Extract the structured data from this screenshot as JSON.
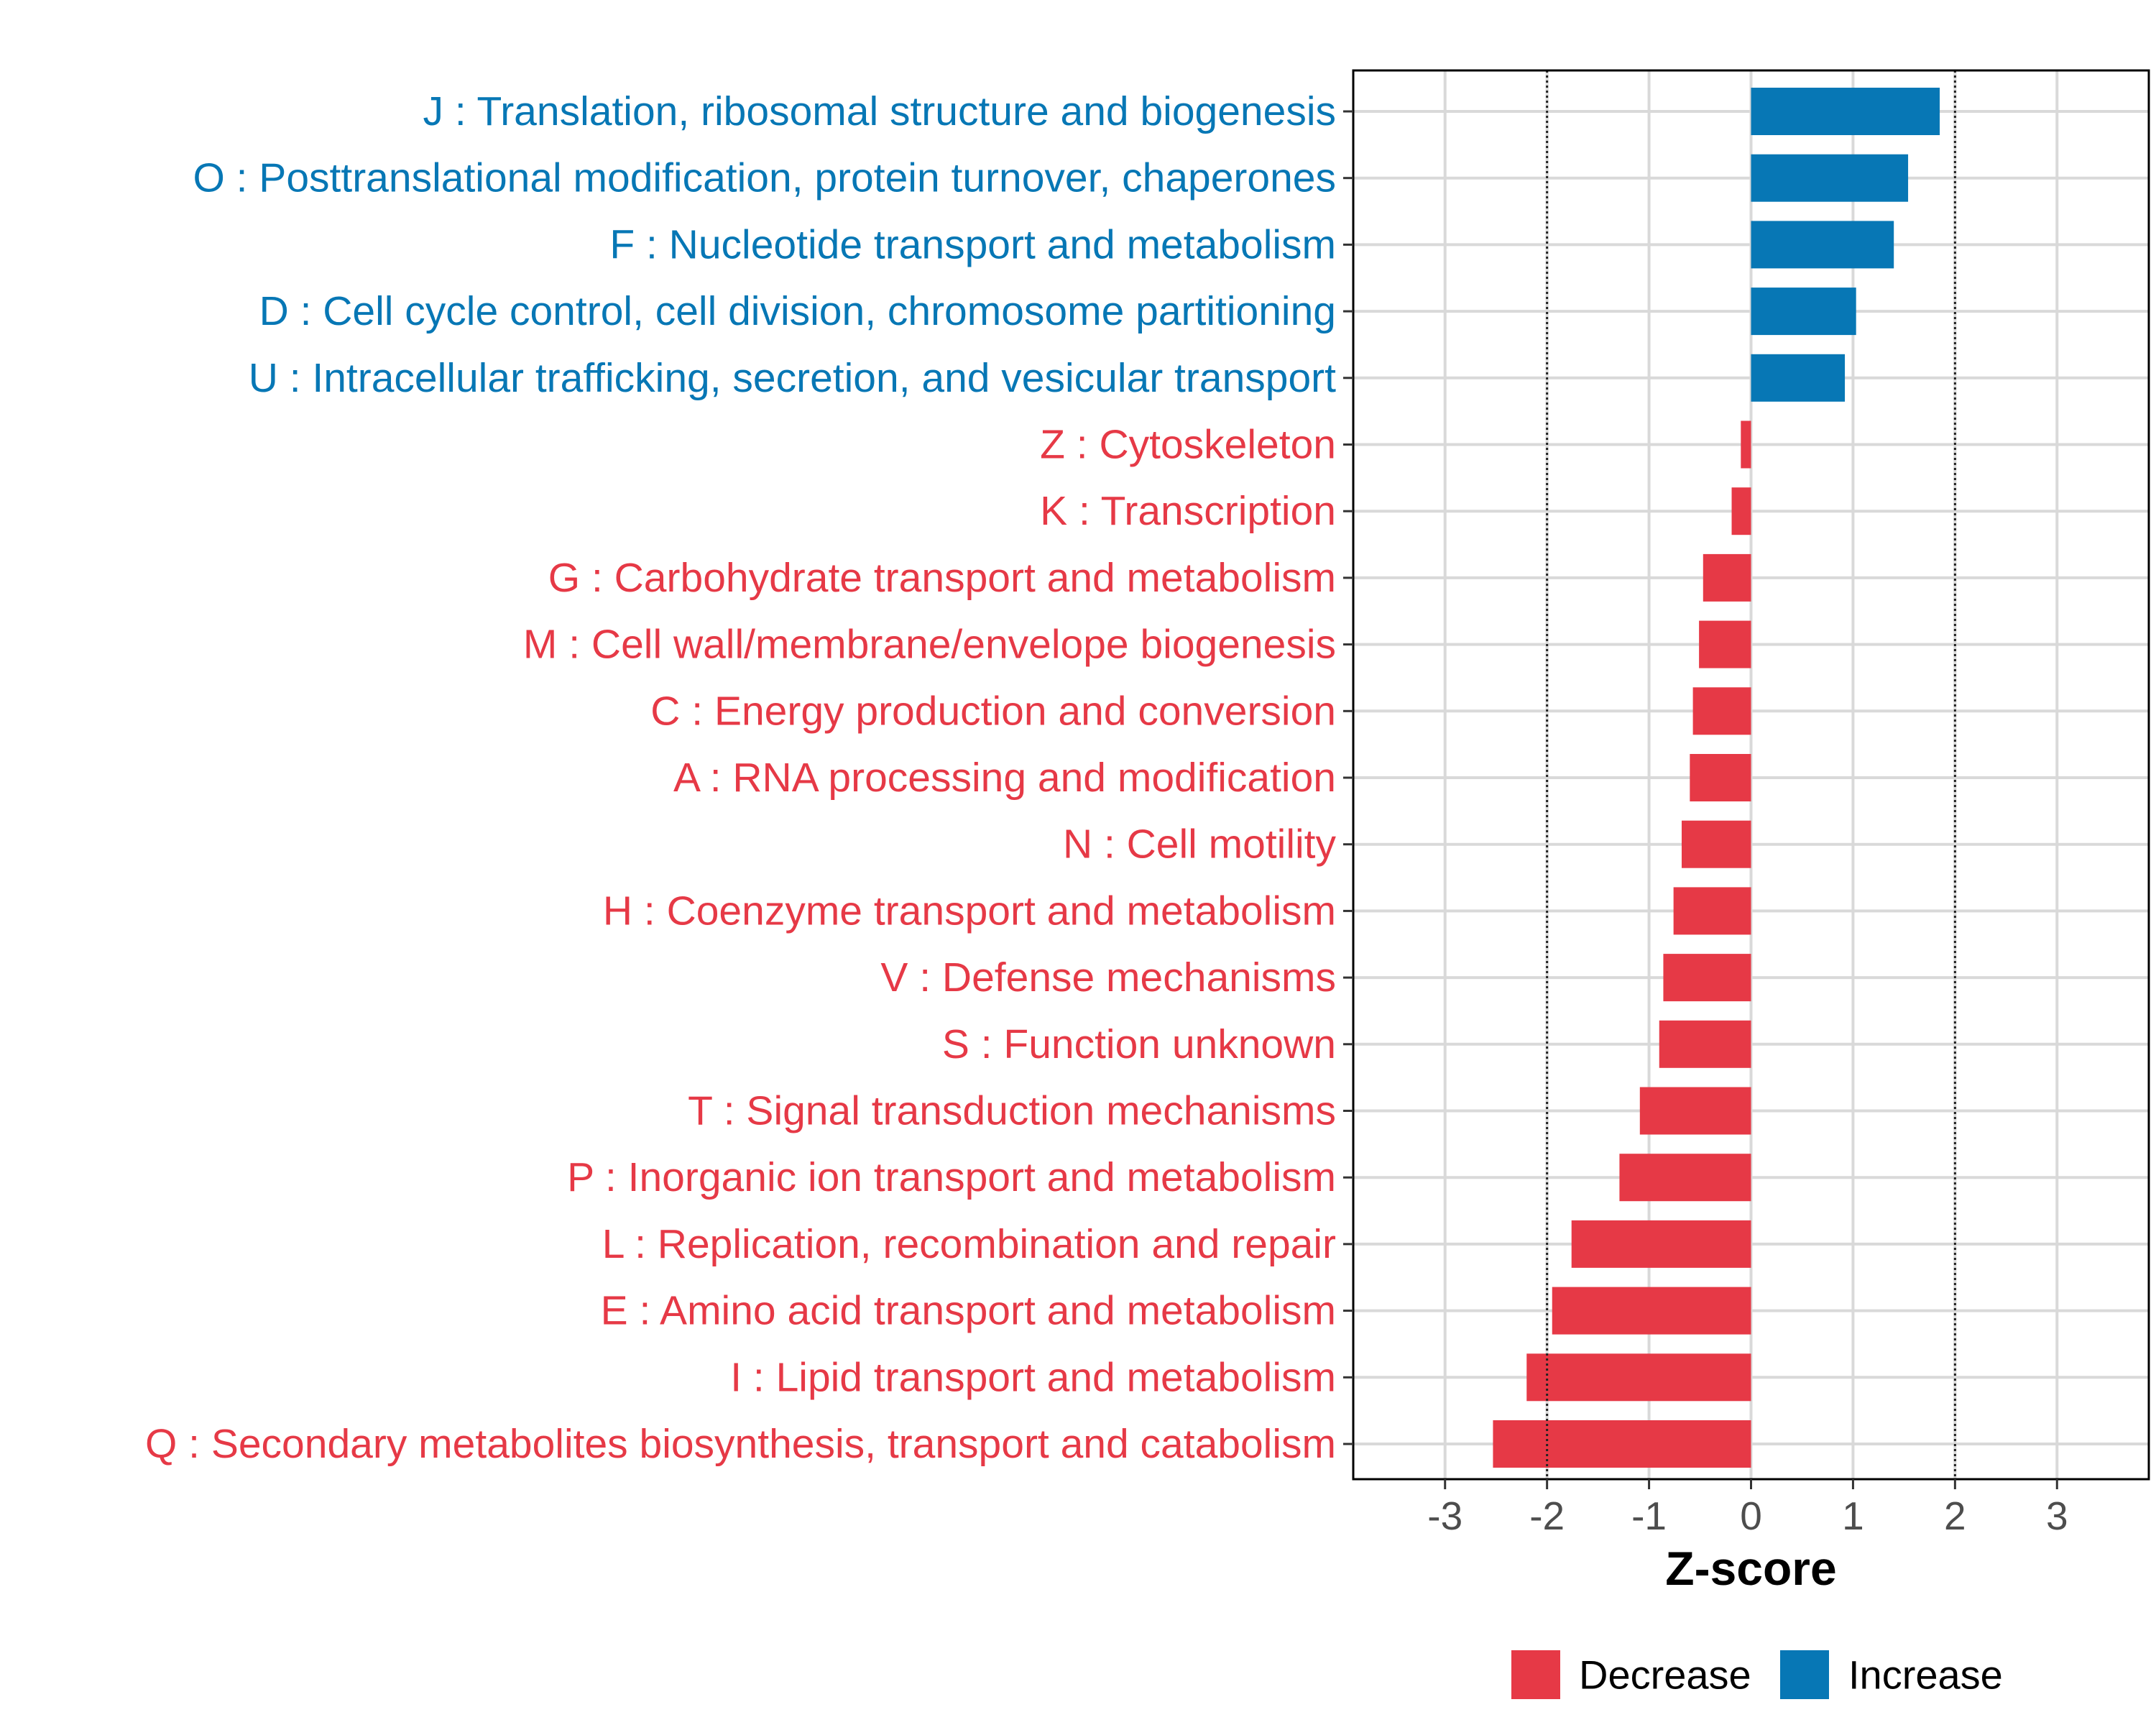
{
  "chart_data": {
    "type": "bar",
    "orientation": "horizontal",
    "title": "",
    "xlabel": "Z-score",
    "ylabel": "",
    "xlim": [
      -3.9,
      3.9
    ],
    "x_ticks": [
      -3,
      -2,
      -1,
      0,
      1,
      2,
      3
    ],
    "x_tick_labels": [
      "-3",
      "-2",
      "-1",
      "0",
      "1",
      "2",
      "3"
    ],
    "reference_lines": [
      -2,
      2
    ],
    "grid": true,
    "legend_position": "bottom",
    "colors": {
      "Decrease": "#e63946",
      "Increase": "#0777b5"
    },
    "legend": [
      {
        "name": "Decrease",
        "label": "Decrease",
        "color": "#e63946"
      },
      {
        "name": "Increase",
        "label": "Increase",
        "color": "#0777b5"
      }
    ],
    "bars": [
      {
        "category": "J : Translation, ribosomal structure and biogenesis",
        "value": 1.85,
        "group": "Increase"
      },
      {
        "category": "O : Posttranslational modification, protein turnover, chaperones",
        "value": 1.54,
        "group": "Increase"
      },
      {
        "category": "F : Nucleotide transport and metabolism",
        "value": 1.4,
        "group": "Increase"
      },
      {
        "category": "D : Cell cycle control, cell division, chromosome partitioning",
        "value": 1.03,
        "group": "Increase"
      },
      {
        "category": "U : Intracellular trafficking, secretion, and vesicular transport",
        "value": 0.92,
        "group": "Increase"
      },
      {
        "category": "Z : Cytoskeleton",
        "value": -0.1,
        "group": "Decrease"
      },
      {
        "category": "K : Transcription",
        "value": -0.19,
        "group": "Decrease"
      },
      {
        "category": "G : Carbohydrate transport and metabolism",
        "value": -0.47,
        "group": "Decrease"
      },
      {
        "category": "M : Cell wall/membrane/envelope biogenesis",
        "value": -0.51,
        "group": "Decrease"
      },
      {
        "category": "C : Energy production and conversion",
        "value": -0.57,
        "group": "Decrease"
      },
      {
        "category": "A : RNA processing and modification",
        "value": -0.6,
        "group": "Decrease"
      },
      {
        "category": "N : Cell motility",
        "value": -0.68,
        "group": "Decrease"
      },
      {
        "category": "H : Coenzyme transport and metabolism",
        "value": -0.76,
        "group": "Decrease"
      },
      {
        "category": "V : Defense mechanisms",
        "value": -0.86,
        "group": "Decrease"
      },
      {
        "category": "S : Function unknown",
        "value": -0.9,
        "group": "Decrease"
      },
      {
        "category": "T : Signal transduction mechanisms",
        "value": -1.09,
        "group": "Decrease"
      },
      {
        "category": "P : Inorganic ion transport and metabolism",
        "value": -1.29,
        "group": "Decrease"
      },
      {
        "category": "L : Replication, recombination and repair",
        "value": -1.76,
        "group": "Decrease"
      },
      {
        "category": "E : Amino acid transport and metabolism",
        "value": -1.95,
        "group": "Decrease"
      },
      {
        "category": "I : Lipid transport and metabolism",
        "value": -2.2,
        "group": "Decrease"
      },
      {
        "category": "Q : Secondary metabolites biosynthesis, transport and catabolism",
        "value": -2.53,
        "group": "Decrease"
      }
    ]
  }
}
